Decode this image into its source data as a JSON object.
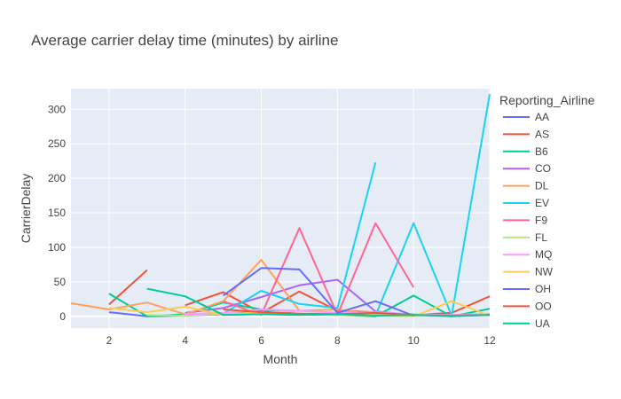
{
  "chart_data": {
    "type": "line",
    "title": "Average carrier delay time (minutes) by airline",
    "xlabel": "Month",
    "ylabel": "CarrierDelay",
    "xlim": [
      1,
      12
    ],
    "ylim": [
      -17,
      330
    ],
    "xticks": [
      2,
      4,
      6,
      8,
      10,
      12
    ],
    "yticks": [
      0,
      50,
      100,
      150,
      200,
      250,
      300
    ],
    "grid": true,
    "legend_title": "Reporting_Airline",
    "legend_position": "right",
    "series": [
      {
        "name": "AA",
        "color": "#636efa",
        "x": [
          2,
          3,
          4,
          5,
          6,
          7,
          8,
          9,
          10,
          11,
          12
        ],
        "y": [
          6,
          0,
          1,
          3,
          8,
          3,
          2,
          4,
          2,
          1,
          3
        ]
      },
      {
        "name": "AS",
        "color": "#EF553B",
        "x": [
          2,
          3,
          null,
          4,
          5,
          6,
          7,
          8,
          9,
          10,
          11,
          12
        ],
        "y": [
          17,
          67,
          null,
          16,
          35,
          5,
          36,
          8,
          6,
          2,
          5,
          29
        ]
      },
      {
        "name": "B6",
        "color": "#00cc96",
        "x": [
          2,
          3,
          4,
          5,
          6,
          7,
          8,
          9,
          10,
          11,
          12
        ],
        "y": [
          33,
          0,
          3,
          20,
          10,
          3,
          2,
          0,
          30,
          0,
          11
        ]
      },
      {
        "name": "CO",
        "color": "#ab63fa",
        "x": [
          4,
          5,
          6,
          7,
          8,
          9,
          10,
          11,
          12
        ],
        "y": [
          5,
          12,
          28,
          45,
          53,
          7,
          2,
          0,
          2
        ]
      },
      {
        "name": "DL",
        "color": "#FFA15A",
        "x": [
          1,
          2,
          3,
          4,
          5,
          6,
          7,
          8,
          9,
          10,
          11,
          12
        ],
        "y": [
          19,
          10,
          20,
          3,
          22,
          82,
          8,
          10,
          2,
          3,
          1,
          2
        ]
      },
      {
        "name": "EV",
        "color": "#19d3f3",
        "x": [
          4,
          5,
          6,
          7,
          8,
          9,
          null,
          9,
          10,
          11,
          12
        ],
        "y": [
          2,
          4,
          37,
          18,
          12,
          223,
          null,
          1,
          135,
          1,
          322
        ]
      },
      {
        "name": "F9",
        "color": "#FF6692",
        "x": [
          5,
          6,
          7,
          8,
          9,
          10
        ],
        "y": [
          22,
          2,
          128,
          2,
          135,
          42
        ]
      },
      {
        "name": "FL",
        "color": "#B6E880",
        "x": [
          3,
          4,
          5,
          6,
          7,
          8,
          9,
          10,
          11,
          12
        ],
        "y": [
          2,
          1,
          4,
          5,
          8,
          5,
          2,
          1,
          2,
          3
        ]
      },
      {
        "name": "MQ",
        "color": "#FF97FF",
        "x": [
          4,
          5,
          6,
          7,
          8,
          9,
          10,
          11,
          12
        ],
        "y": [
          3,
          5,
          10,
          8,
          5,
          6,
          3,
          2,
          4
        ]
      },
      {
        "name": "NW",
        "color": "#FECB52",
        "x": [
          2,
          3,
          4,
          5,
          6,
          7,
          8,
          9,
          10,
          11,
          12
        ],
        "y": [
          12,
          6,
          14,
          2,
          6,
          3,
          2,
          1,
          0,
          22,
          1
        ]
      },
      {
        "name": "OH",
        "color": "#636efa",
        "x": [
          5,
          6,
          7,
          8,
          9,
          10
        ],
        "y": [
          30,
          70,
          68,
          5,
          22,
          1
        ]
      },
      {
        "name": "OO",
        "color": "#EF553B",
        "x": [
          5,
          6,
          7,
          8,
          9,
          10,
          11,
          12
        ],
        "y": [
          10,
          6,
          4,
          3,
          5,
          2,
          1,
          2
        ]
      },
      {
        "name": "UA",
        "color": "#00cc96",
        "x": [
          3,
          4,
          5,
          6,
          7,
          8,
          9,
          10,
          11,
          12
        ],
        "y": [
          40,
          29,
          2,
          3,
          2,
          3,
          1,
          2,
          1,
          2
        ]
      }
    ]
  }
}
